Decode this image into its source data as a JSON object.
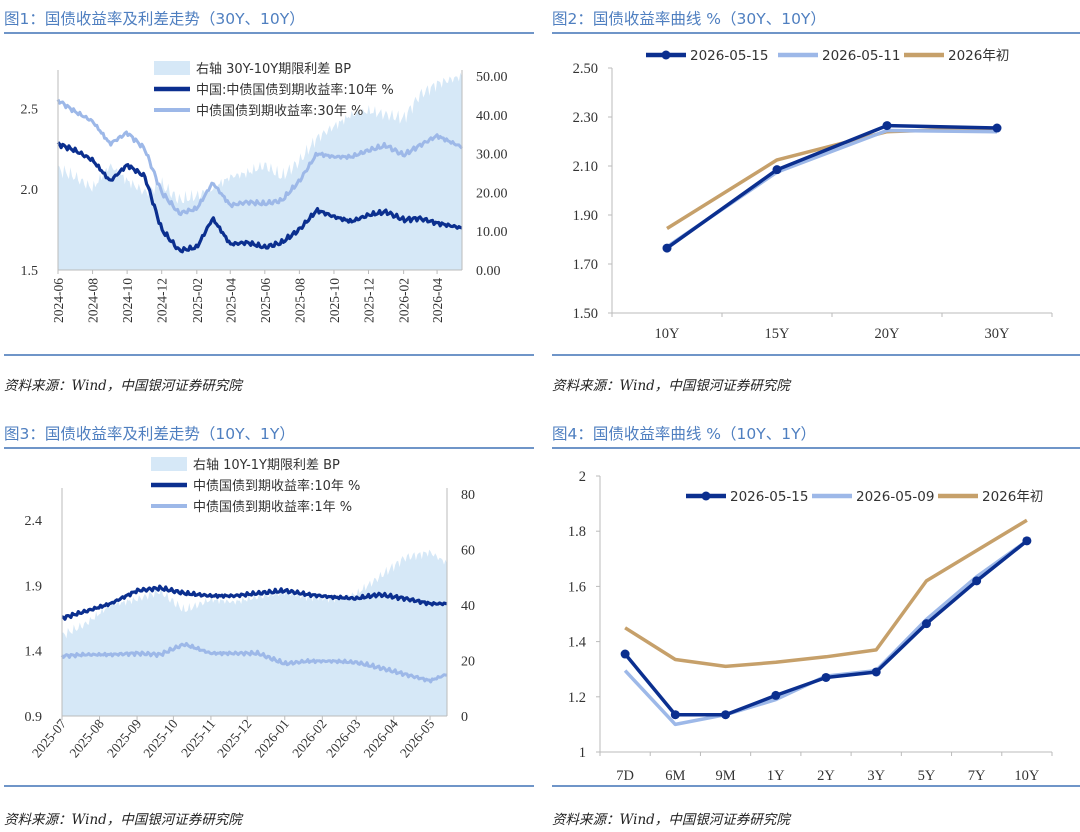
{
  "colors": {
    "dark_blue": "#0b2f8f",
    "light_blue": "#9db8e8",
    "area_blue": "#d6e8f7",
    "gold": "#c6a06a",
    "title_blue": "#4f7fc0"
  },
  "panels": [
    {
      "title": "图1：国债收益率及利差走势（30Y、10Y）",
      "source": "资料来源：Wind，中国银河证券研究院",
      "chart_data": {
        "type": "line",
        "left_axis": {
          "ylim": [
            1.5,
            2.7
          ],
          "ticks": [
            "1.5",
            "2.0",
            "2.5"
          ],
          "tick_values": [
            1.5,
            2.0,
            2.5
          ]
        },
        "right_axis": {
          "ylim": [
            0,
            50
          ],
          "ticks": [
            "0.00",
            "10.00",
            "20.00",
            "30.00",
            "40.00",
            "50.00"
          ],
          "tick_values": [
            0,
            10,
            20,
            30,
            40,
            50
          ]
        },
        "x_ticks": [
          "2024-06",
          "2024-08",
          "2024-10",
          "2024-12",
          "2025-02",
          "2025-04",
          "2025-06",
          "2025-08",
          "2025-10",
          "2025-12",
          "2026-02",
          "2026-04"
        ],
        "x_range": [
          "2024-06-01",
          "2026-05-15"
        ],
        "series": [
          {
            "name": "右轴 30Y-10Y期限利差 BP",
            "kind": "area",
            "axis": "right",
            "x": [
              "2024-06-01",
              "2024-07-01",
              "2024-08-01",
              "2024-09-01",
              "2024-10-01",
              "2024-11-01",
              "2024-12-01",
              "2025-01-01",
              "2025-02-01",
              "2025-03-01",
              "2025-04-01",
              "2025-05-01",
              "2025-06-01",
              "2025-07-01",
              "2025-08-01",
              "2025-09-01",
              "2025-10-01",
              "2025-11-01",
              "2025-12-01",
              "2026-01-01",
              "2026-02-01",
              "2026-03-01",
              "2026-04-01",
              "2026-05-15"
            ],
            "values": [
              26,
              24,
              21,
              27,
              23,
              20,
              22,
              18,
              19,
              21,
              24,
              25,
              27,
              24,
              28,
              34,
              37,
              40,
              41,
              40,
              39,
              45,
              48,
              50
            ]
          },
          {
            "name": "中国:中债国债到期收益率:10年 %",
            "kind": "line",
            "axis": "left",
            "x": [
              "2024-06-01",
              "2024-07-01",
              "2024-08-01",
              "2024-09-01",
              "2024-10-01",
              "2024-11-01",
              "2024-12-01",
              "2025-01-01",
              "2025-02-01",
              "2025-03-01",
              "2025-04-01",
              "2025-05-01",
              "2025-06-01",
              "2025-07-01",
              "2025-08-01",
              "2025-09-01",
              "2025-10-01",
              "2025-11-01",
              "2025-12-01",
              "2026-01-01",
              "2026-02-01",
              "2026-03-01",
              "2026-04-01",
              "2026-05-15"
            ],
            "values": [
              2.28,
              2.24,
              2.18,
              2.05,
              2.15,
              2.08,
              1.75,
              1.62,
              1.64,
              1.82,
              1.66,
              1.67,
              1.64,
              1.67,
              1.75,
              1.87,
              1.83,
              1.8,
              1.84,
              1.86,
              1.81,
              1.82,
              1.79,
              1.76
            ]
          },
          {
            "name": "中债国债到期收益率:30年 %",
            "kind": "line",
            "axis": "left",
            "x": [
              "2024-06-01",
              "2024-07-01",
              "2024-08-01",
              "2024-09-01",
              "2024-10-01",
              "2024-11-01",
              "2024-12-01",
              "2025-01-01",
              "2025-02-01",
              "2025-03-01",
              "2025-04-01",
              "2025-05-01",
              "2025-06-01",
              "2025-07-01",
              "2025-08-01",
              "2025-09-01",
              "2025-10-01",
              "2025-11-01",
              "2025-12-01",
              "2026-01-01",
              "2026-02-01",
              "2026-03-01",
              "2026-04-01",
              "2026-05-15"
            ],
            "values": [
              2.55,
              2.48,
              2.42,
              2.28,
              2.35,
              2.25,
              1.98,
              1.85,
              1.88,
              2.04,
              1.9,
              1.92,
              1.91,
              1.93,
              2.05,
              2.22,
              2.2,
              2.2,
              2.24,
              2.27,
              2.21,
              2.27,
              2.33,
              2.26
            ]
          }
        ]
      }
    },
    {
      "title": "图2：国债收益率曲线 %（30Y、10Y）",
      "source": "资料来源：Wind，中国银河证券研究院",
      "chart_data": {
        "type": "line",
        "categories": [
          "10Y",
          "15Y",
          "20Y",
          "30Y"
        ],
        "ylim": [
          1.5,
          2.5
        ],
        "ticks": [
          "1.50",
          "1.70",
          "1.90",
          "2.10",
          "2.30",
          "2.50"
        ],
        "tick_values": [
          1.5,
          1.7,
          1.9,
          2.1,
          2.3,
          2.5
        ],
        "series": [
          {
            "name": "2026-05-15",
            "values": [
              1.765,
              2.085,
              2.265,
              2.255
            ],
            "markers": true
          },
          {
            "name": "2026-05-11",
            "values": [
              1.77,
              2.075,
              2.245,
              2.24
            ],
            "markers": false
          },
          {
            "name": "2026年初",
            "values": [
              1.845,
              2.125,
              2.24,
              2.255
            ],
            "markers": false
          }
        ]
      }
    },
    {
      "title": "图3：国债收益率及利差走势（10Y、1Y）",
      "source": "资料来源：Wind，中国银河证券研究院",
      "chart_data": {
        "type": "line",
        "left_axis": {
          "ylim": [
            0.9,
            2.6
          ],
          "ticks": [
            "0.9",
            "1.4",
            "1.9",
            "2.4"
          ],
          "tick_values": [
            0.9,
            1.4,
            1.9,
            2.4
          ]
        },
        "right_axis": {
          "ylim": [
            0,
            80
          ],
          "ticks": [
            "0",
            "20",
            "40",
            "60",
            "80"
          ],
          "tick_values": [
            0,
            20,
            40,
            60,
            80
          ]
        },
        "x_ticks": [
          "2025-07",
          "2025-08",
          "2025-09",
          "2025-10",
          "2025-11",
          "2025-12",
          "2026-01",
          "2026-02",
          "2026-03",
          "2026-04",
          "2026-05"
        ],
        "x_range": [
          "2025-07-01",
          "2026-05-15"
        ],
        "series": [
          {
            "name": "右轴 10Y-1Y期限利差 BP",
            "kind": "area",
            "axis": "right",
            "x": [
              "2025-07-01",
              "2025-07-20",
              "2025-08-10",
              "2025-09-01",
              "2025-09-20",
              "2025-10-10",
              "2025-11-01",
              "2025-11-20",
              "2025-12-10",
              "2026-01-01",
              "2026-01-20",
              "2026-02-10",
              "2026-03-01",
              "2026-03-20",
              "2026-04-10",
              "2026-05-01",
              "2026-05-15"
            ],
            "values": [
              29,
              33,
              40,
              42,
              45,
              38,
              42,
              41,
              43,
              45,
              43,
              42,
              44,
              50,
              57,
              59,
              55
            ]
          },
          {
            "name": "中债国债到期收益率:10年 %",
            "kind": "line",
            "axis": "left",
            "x": [
              "2025-07-01",
              "2025-07-20",
              "2025-08-10",
              "2025-09-01",
              "2025-09-20",
              "2025-10-10",
              "2025-11-01",
              "2025-11-20",
              "2025-12-10",
              "2026-01-01",
              "2026-01-20",
              "2026-02-10",
              "2026-03-01",
              "2026-03-20",
              "2026-04-10",
              "2026-05-01",
              "2026-05-15"
            ],
            "values": [
              1.65,
              1.7,
              1.76,
              1.86,
              1.88,
              1.84,
              1.82,
              1.82,
              1.84,
              1.86,
              1.83,
              1.81,
              1.8,
              1.83,
              1.8,
              1.76,
              1.76
            ]
          },
          {
            "name": "中债国债到期收益率:1年 %",
            "kind": "line",
            "axis": "left",
            "x": [
              "2025-07-01",
              "2025-07-20",
              "2025-08-10",
              "2025-09-01",
              "2025-09-20",
              "2025-10-10",
              "2025-11-01",
              "2025-11-20",
              "2025-12-10",
              "2026-01-01",
              "2026-01-20",
              "2026-02-10",
              "2026-03-01",
              "2026-03-20",
              "2026-04-10",
              "2026-05-01",
              "2026-05-15"
            ],
            "values": [
              1.36,
              1.37,
              1.37,
              1.38,
              1.37,
              1.45,
              1.38,
              1.38,
              1.38,
              1.3,
              1.32,
              1.32,
              1.31,
              1.27,
              1.22,
              1.17,
              1.22
            ]
          }
        ]
      }
    },
    {
      "title": "图4：国债收益率曲线 %（10Y、1Y）",
      "source": "资料来源：Wind，中国银河证券研究院",
      "chart_data": {
        "type": "line",
        "categories": [
          "7D",
          "6M",
          "9M",
          "1Y",
          "2Y",
          "3Y",
          "5Y",
          "7Y",
          "10Y"
        ],
        "ylim": [
          1,
          2
        ],
        "ticks": [
          "1",
          "1.2",
          "1.4",
          "1.6",
          "1.8",
          "2"
        ],
        "tick_values": [
          1,
          1.2,
          1.4,
          1.6,
          1.8,
          2
        ],
        "series": [
          {
            "name": "2026-05-15",
            "values": [
              1.355,
              1.135,
              1.135,
              1.205,
              1.27,
              1.29,
              1.465,
              1.62,
              1.765
            ],
            "markers": true
          },
          {
            "name": "2026-05-09",
            "values": [
              1.295,
              1.1,
              1.135,
              1.19,
              1.275,
              1.295,
              1.48,
              1.635,
              1.765
            ],
            "markers": false
          },
          {
            "name": "2026年初",
            "values": [
              1.45,
              1.335,
              1.31,
              1.325,
              1.345,
              1.37,
              1.62,
              1.73,
              1.84
            ],
            "markers": false
          }
        ]
      }
    }
  ]
}
